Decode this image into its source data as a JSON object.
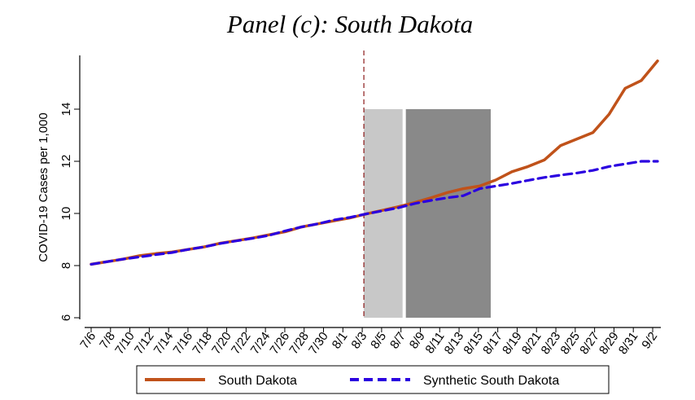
{
  "chart_data": {
    "type": "line",
    "title": "Panel (c): South Dakota",
    "xlabel": "",
    "ylabel": "COVID-19 Cases per 1,000",
    "ylim": [
      6,
      16
    ],
    "yticks": [
      6,
      8,
      10,
      12,
      14
    ],
    "x_tick_labels": [
      "7/6",
      "7/8",
      "7/10",
      "7/12",
      "7/14",
      "7/16",
      "7/18",
      "7/20",
      "7/22",
      "7/24",
      "7/26",
      "7/28",
      "7/30",
      "8/1",
      "8/3",
      "8/5",
      "8/7",
      "8/9",
      "8/11",
      "8/13",
      "8/15",
      "8/17",
      "8/19",
      "8/21",
      "8/23",
      "8/25",
      "8/27",
      "8/29",
      "8/31",
      "9/2"
    ],
    "vertical_line_at": "8/3",
    "shaded_regions": [
      {
        "from": "8/3",
        "to": "8/7",
        "color": "#c8c8c8"
      },
      {
        "from": "8/7",
        "to": "8/16",
        "color": "#898989"
      }
    ],
    "series": [
      {
        "name": "South Dakota",
        "color": "#c0521a",
        "style": "solid",
        "values": [
          8.05,
          8.15,
          8.25,
          8.38,
          8.46,
          8.52,
          8.62,
          8.72,
          8.86,
          8.96,
          9.06,
          9.18,
          9.3,
          9.48,
          9.6,
          9.72,
          9.83,
          9.98,
          10.12,
          10.26,
          10.42,
          10.6,
          10.8,
          10.95,
          11.05,
          11.28,
          11.6,
          11.8,
          12.05,
          12.6,
          12.85,
          13.1,
          13.8,
          14.8,
          15.1,
          15.85
        ]
      },
      {
        "name": "Synthetic South Dakota",
        "color": "#2a00e0",
        "style": "dashed",
        "values": [
          8.05,
          8.15,
          8.25,
          8.33,
          8.42,
          8.5,
          8.62,
          8.72,
          8.85,
          8.95,
          9.05,
          9.16,
          9.33,
          9.48,
          9.6,
          9.75,
          9.85,
          9.98,
          10.1,
          10.22,
          10.38,
          10.5,
          10.6,
          10.68,
          10.95,
          11.05,
          11.15,
          11.27,
          11.38,
          11.47,
          11.55,
          11.65,
          11.8,
          11.9,
          12.0,
          12.0
        ]
      }
    ],
    "x_index": [
      0,
      1,
      2,
      3,
      4,
      5,
      6,
      7,
      8,
      9,
      10,
      11,
      12,
      13,
      14,
      15,
      16,
      17,
      18,
      19,
      20,
      21,
      22,
      23,
      24,
      25,
      26,
      27,
      28,
      29,
      30,
      31,
      32,
      33,
      34,
      35
    ],
    "legend": {
      "placement": "bottom"
    }
  }
}
